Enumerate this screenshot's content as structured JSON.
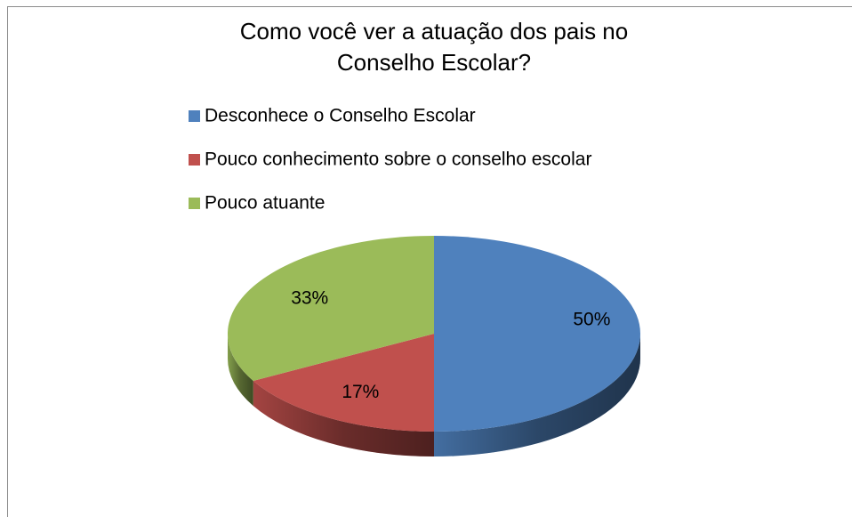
{
  "chart_data": {
    "type": "pie3d",
    "title": "Como você ver a atuação dos pais no Conselho Escolar?",
    "categories": [
      "Desconhece o Conselho Escolar",
      "Pouco conhecimento sobre o conselho escolar",
      "Pouco atuante"
    ],
    "values": [
      50,
      17,
      33
    ],
    "value_labels": [
      "50%",
      "17%",
      "33%"
    ],
    "colors": [
      "#4f81bd",
      "#c0504d",
      "#9bbb59"
    ],
    "legend": "top"
  }
}
